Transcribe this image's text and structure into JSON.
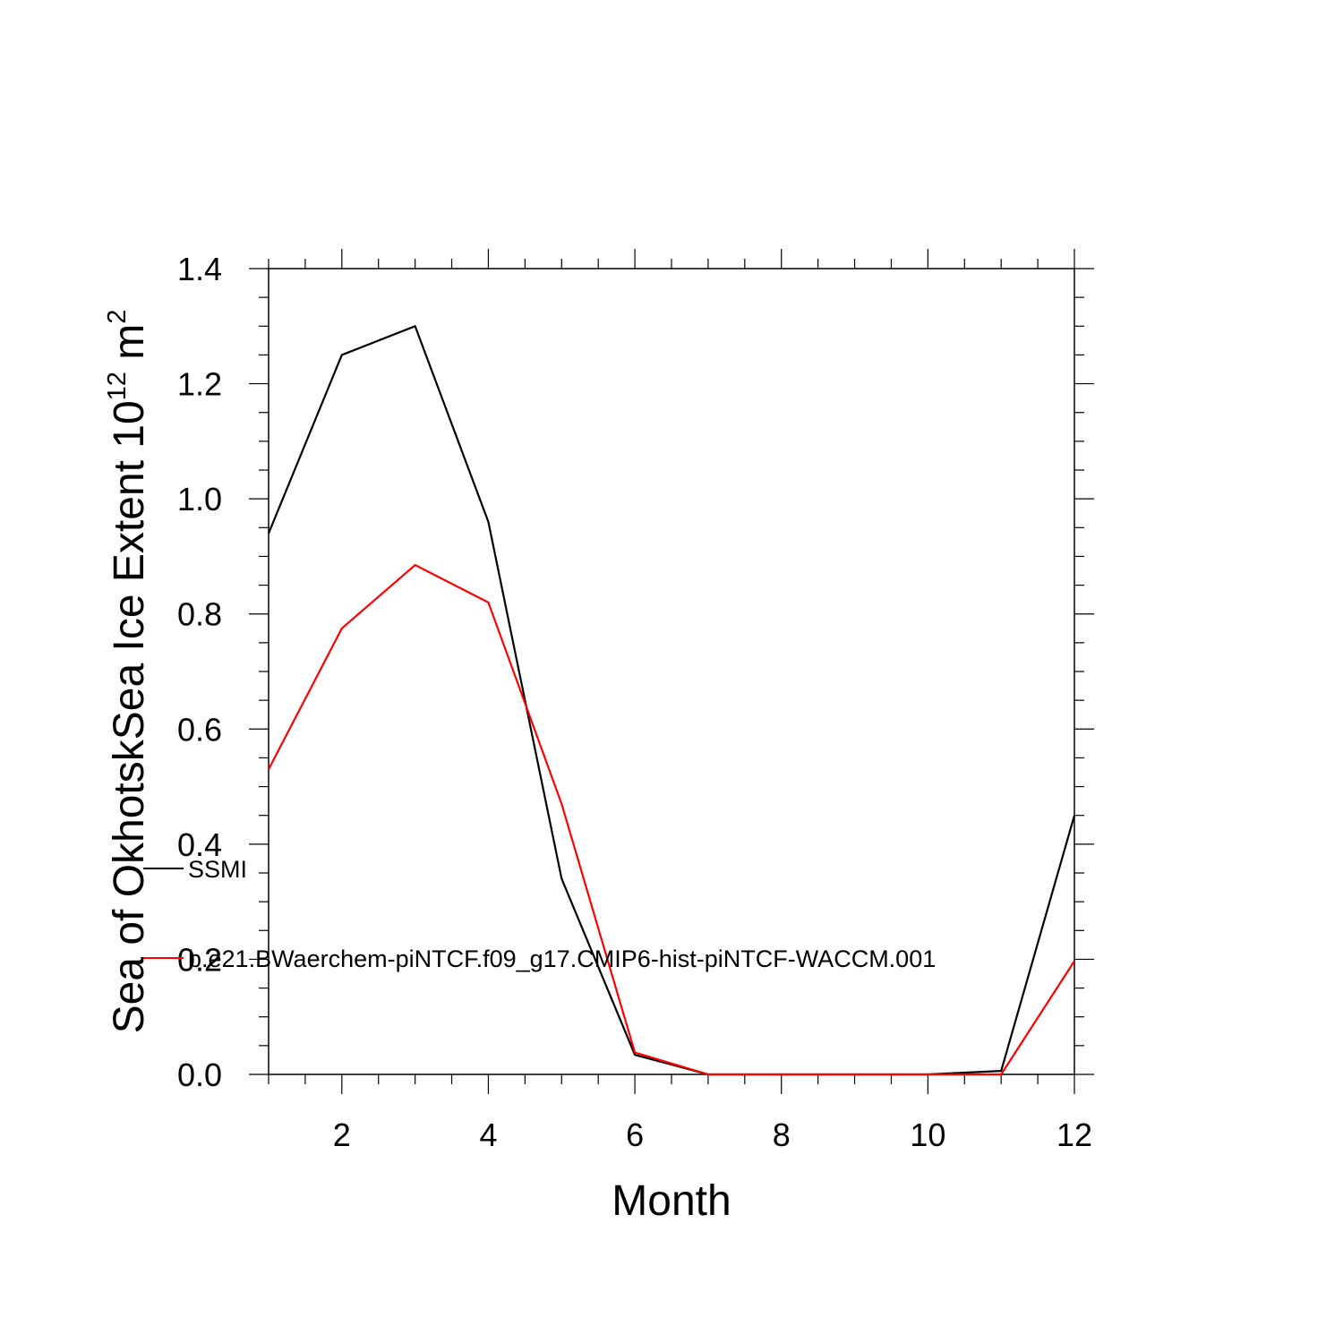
{
  "chart_data": {
    "type": "line",
    "xlabel": "Month",
    "ylabel_main": "Sea of OkhotskSea Ice Extent 10",
    "ylabel_exp": "12",
    "ylabel_unit": " m",
    "ylabel_unit_exp": "2",
    "xlim": [
      1,
      12
    ],
    "ylim": [
      0,
      1.4
    ],
    "x_ticks": [
      2,
      4,
      6,
      8,
      10,
      12
    ],
    "x_tick_labels": [
      "2",
      "4",
      "6",
      "8",
      "10",
      "12"
    ],
    "y_ticks": [
      0,
      0.2,
      0.4,
      0.6,
      0.8,
      1.0,
      1.2,
      1.4
    ],
    "y_tick_labels": [
      "0.0",
      "0.2",
      "0.4",
      "0.6",
      "0.8",
      "1.0",
      "1.2",
      "1.4"
    ],
    "legend_placement": "center-left",
    "x": [
      1,
      2,
      3,
      4,
      5,
      6,
      7,
      8,
      9,
      10,
      11,
      12
    ],
    "series": [
      {
        "name": "SSMI",
        "color": "#000000",
        "values": [
          0.94,
          1.25,
          1.3,
          0.96,
          0.34,
          0.034,
          0.0,
          0.0,
          0.0,
          0.0,
          0.006,
          0.45
        ]
      },
      {
        "name": "b.e21.BWaerchem-piNTCF.f09_g17.CMIP6-hist-piNTCF-WACCM.001",
        "color": "#ff0000",
        "values": [
          0.53,
          0.775,
          0.885,
          0.82,
          0.47,
          0.038,
          0.0,
          0.0,
          0.0,
          0.0,
          0.0,
          0.197
        ]
      }
    ]
  }
}
